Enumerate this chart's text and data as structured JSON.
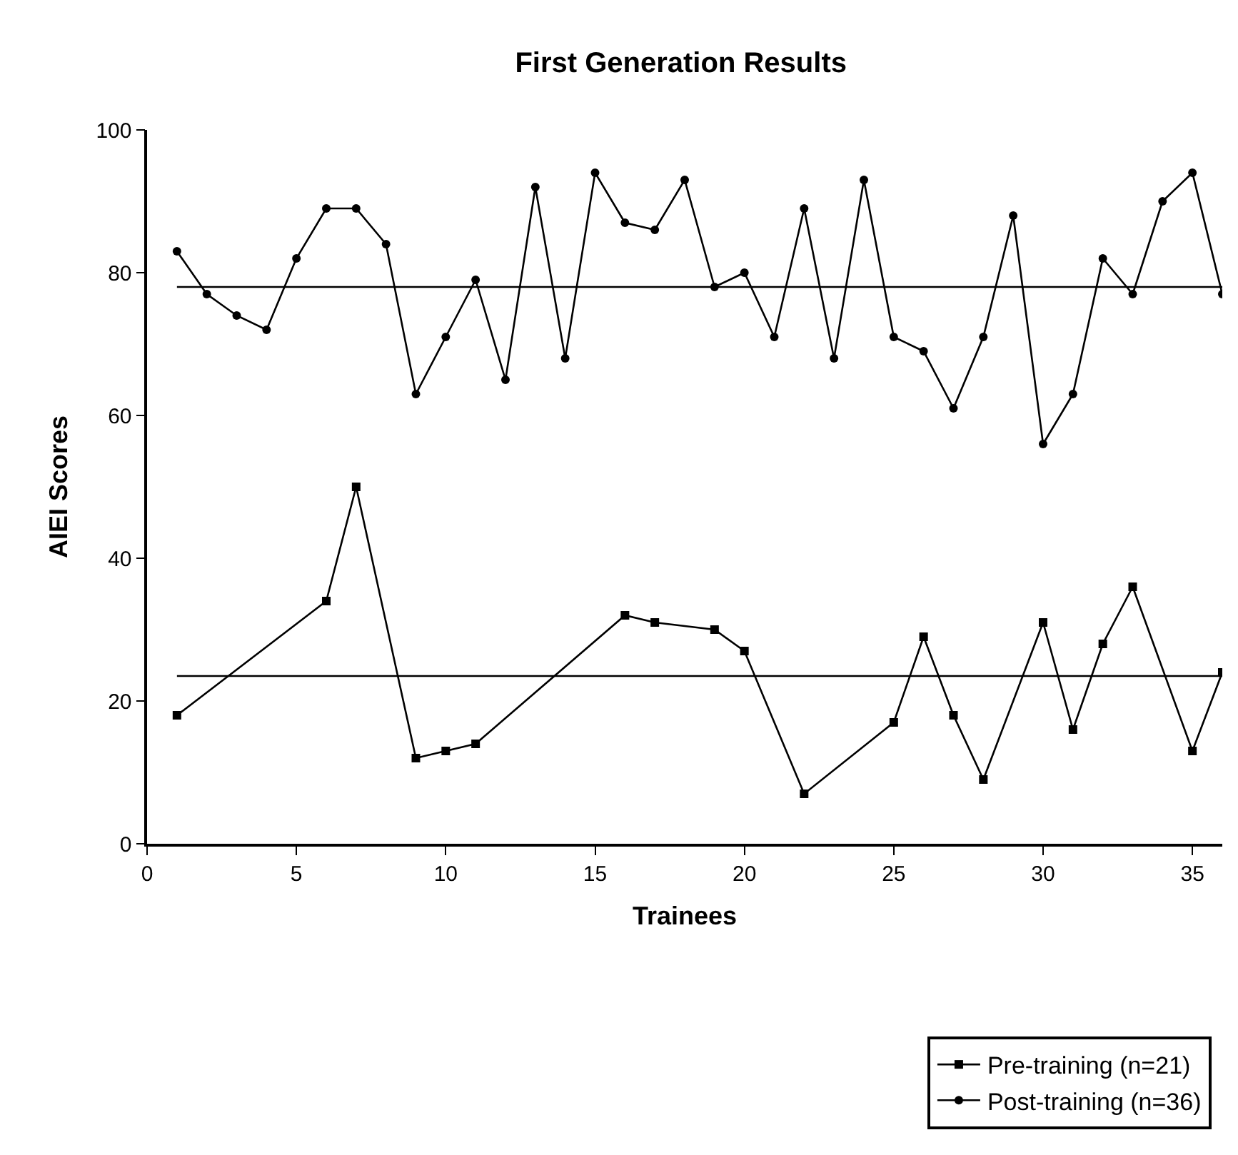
{
  "chart_data": {
    "type": "line",
    "title": "First Generation Results",
    "xlabel": "Trainees",
    "ylabel": "AIEI Scores",
    "xlim": [
      0,
      36
    ],
    "xticks": [
      0,
      5,
      10,
      15,
      20,
      25,
      30,
      35
    ],
    "ylim": [
      0,
      100
    ],
    "yticks": [
      0,
      20,
      40,
      60,
      80,
      100
    ],
    "legend": "bottom right",
    "line_style": "solid",
    "series": [
      {
        "name": "Pre-training (n=21)",
        "color": "#000000",
        "marker": "square",
        "x": [
          1,
          6,
          7,
          9,
          10,
          11,
          16,
          17,
          19,
          20,
          22,
          25,
          26,
          27,
          28,
          30,
          31,
          32,
          33,
          35,
          36
        ],
        "values": [
          18,
          34,
          50,
          12,
          13,
          14,
          32,
          31,
          30,
          27,
          7,
          17,
          29,
          18,
          9,
          31,
          16,
          28,
          36,
          13,
          24
        ]
      },
      {
        "name": "Post-training (n=36)",
        "color": "#000000",
        "marker": "circle",
        "x": [
          1,
          2,
          3,
          4,
          5,
          6,
          7,
          8,
          9,
          10,
          11,
          12,
          13,
          14,
          15,
          16,
          17,
          18,
          19,
          20,
          21,
          22,
          23,
          24,
          25,
          26,
          27,
          28,
          29,
          30,
          31,
          32,
          33,
          34,
          35,
          36
        ],
        "values": [
          83,
          77,
          74,
          72,
          82,
          89,
          89,
          84,
          63,
          71,
          79,
          65,
          92,
          68,
          94,
          87,
          86,
          93,
          78,
          80,
          71,
          89,
          68,
          93,
          71,
          69,
          61,
          71,
          88,
          56,
          63,
          82,
          77,
          90,
          94,
          77
        ]
      }
    ],
    "ref_lines": [
      {
        "axis": "y",
        "value": 78,
        "color": "#000000"
      },
      {
        "axis": "y",
        "value": 23.5,
        "color": "#000000"
      }
    ]
  }
}
